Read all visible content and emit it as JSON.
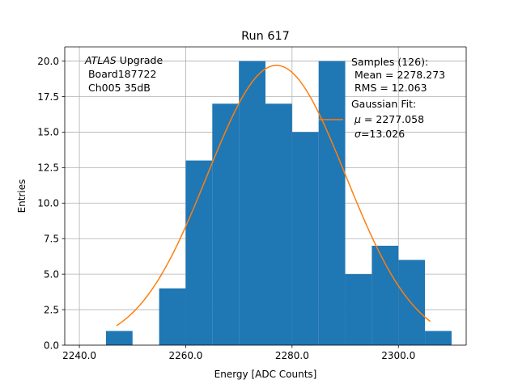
{
  "chart_data": {
    "type": "bar",
    "title": "Run 617",
    "xlabel": "Energy [ADC Counts]",
    "ylabel": "Entries",
    "xlim": [
      2237.25,
      2312.75
    ],
    "ylim": [
      0,
      21
    ],
    "grid": true,
    "bin_width": 5,
    "bins": [
      {
        "x0": 2245,
        "x1": 2250,
        "count": 1
      },
      {
        "x0": 2250,
        "x1": 2255,
        "count": 0
      },
      {
        "x0": 2255,
        "x1": 2260,
        "count": 4
      },
      {
        "x0": 2260,
        "x1": 2265,
        "count": 13
      },
      {
        "x0": 2265,
        "x1": 2270,
        "count": 17
      },
      {
        "x0": 2270,
        "x1": 2275,
        "count": 20
      },
      {
        "x0": 2275,
        "x1": 2280,
        "count": 17
      },
      {
        "x0": 2280,
        "x1": 2285,
        "count": 15
      },
      {
        "x0": 2285,
        "x1": 2290,
        "count": 20
      },
      {
        "x0": 2290,
        "x1": 2295,
        "count": 5
      },
      {
        "x0": 2295,
        "x1": 2300,
        "count": 7
      },
      {
        "x0": 2300,
        "x1": 2305,
        "count": 6
      },
      {
        "x0": 2305,
        "x1": 2310,
        "count": 1
      }
    ],
    "x_ticks": [
      2240,
      2260,
      2280,
      2300
    ],
    "x_tick_labels": [
      "2240.0",
      "2260.0",
      "2280.0",
      "2300.0"
    ],
    "y_ticks": [
      0,
      2.5,
      5,
      7.5,
      10,
      12.5,
      15,
      17.5,
      20
    ],
    "y_tick_labels": [
      "0.0",
      "2.5",
      "5.0",
      "7.5",
      "10.0",
      "12.5",
      "15.0",
      "17.5",
      "20.0"
    ],
    "fit": {
      "amplitude": 19.7,
      "mean": 2277.058,
      "sigma": 13.026,
      "x_range": [
        2247,
        2306
      ]
    },
    "colors": {
      "bars": "#1f77b4",
      "fit": "#ff7f0e",
      "grid": "#b0b0b0"
    },
    "annotation": {
      "line1_italic": "ATLAS",
      "line1_rest": " Upgrade",
      "line2": " Board187722",
      "line3": " Ch005 35dB"
    },
    "legend": {
      "placement": "upper right",
      "samples_title": "Samples (126):",
      "samples_mean": " Mean = 2278.273",
      "samples_rms": " RMS = 12.063",
      "fit_title": "Gaussian Fit:",
      "fit_mu_symbol": "μ",
      "fit_mu_value": " = 2277.058",
      "fit_sigma_symbol": "σ",
      "fit_sigma_value": "=13.026"
    }
  }
}
